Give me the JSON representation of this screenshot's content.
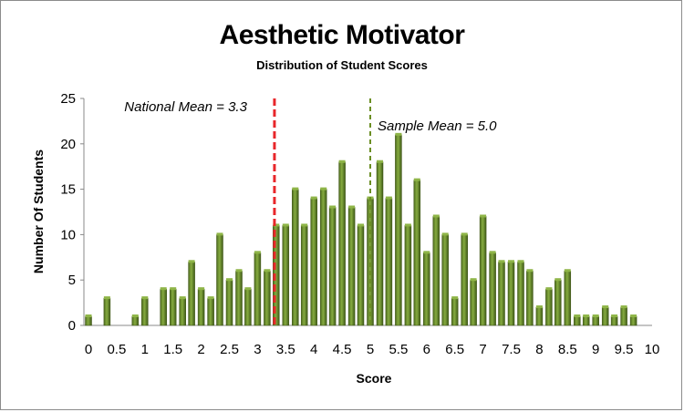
{
  "chart_data": {
    "type": "bar",
    "title": "Aesthetic Motivator",
    "subtitle": "Distribution of Student Scores",
    "xlabel": "Score",
    "ylabel": "Number Of Students",
    "xlim": [
      0,
      10
    ],
    "ylim": [
      0,
      25
    ],
    "x_ticks": [
      "0",
      "0.5",
      "1",
      "1.5",
      "2",
      "2.5",
      "3",
      "3.5",
      "4",
      "4.5",
      "5",
      "5.5",
      "6",
      "6.5",
      "7",
      "7.5",
      "8",
      "8.5",
      "9",
      "9.5",
      "10"
    ],
    "y_ticks": [
      "0",
      "5",
      "10",
      "15",
      "20",
      "25"
    ],
    "grid": false,
    "bar_color": "#5a7a26",
    "bar_highlight": "#8fb548",
    "x": [
      0,
      0.33,
      0.83,
      1,
      1.33,
      1.5,
      1.67,
      1.83,
      2,
      2.17,
      2.33,
      2.5,
      2.67,
      2.83,
      3,
      3.17,
      3.33,
      3.5,
      3.67,
      3.83,
      4,
      4.17,
      4.33,
      4.5,
      4.67,
      4.83,
      5,
      5.17,
      5.33,
      5.5,
      5.67,
      5.83,
      6,
      6.17,
      6.33,
      6.5,
      6.67,
      6.83,
      7,
      7.17,
      7.33,
      7.5,
      7.67,
      7.83,
      8,
      8.17,
      8.33,
      8.5,
      8.67,
      8.83,
      9,
      9.17,
      9.33,
      9.5,
      9.67
    ],
    "values": [
      1,
      3,
      1,
      3,
      4,
      4,
      3,
      7,
      4,
      3,
      10,
      5,
      6,
      4,
      8,
      6,
      11,
      11,
      15,
      11,
      14,
      15,
      13,
      18,
      13,
      11,
      14,
      18,
      14,
      21,
      11,
      16,
      8,
      12,
      10,
      3,
      10,
      5,
      12,
      8,
      7,
      7,
      7,
      6,
      2,
      4,
      5,
      6,
      1,
      1,
      1,
      2,
      1,
      2,
      1
    ],
    "reference_lines": [
      {
        "label": "National Mean = 3.3",
        "x": 3.3,
        "color": "#e8262a",
        "style": "dashed"
      },
      {
        "label": "Sample Mean = 5.0",
        "x": 5.0,
        "color": "#6b8e23",
        "style": "dashed"
      }
    ]
  }
}
